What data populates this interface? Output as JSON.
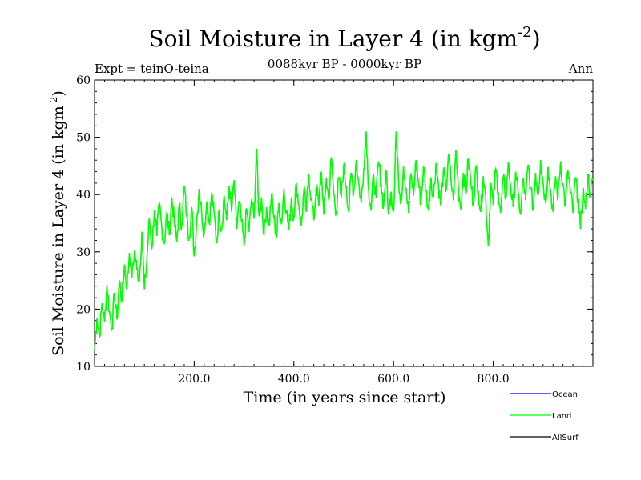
{
  "chart_data": {
    "type": "line",
    "title": "Soil Moisture in Layer 4 (in kgm",
    "title_sup": "-2",
    "title_close": ")",
    "subtitle": "0088kyr BP - 0000kyr BP",
    "expt_label": "Expt = teinO-teina",
    "season_label": "Ann",
    "xlabel": "Time (in years since start)",
    "ylabel": "Soil Moisture in Layer 4 (in kgm",
    "ylabel_sup": "-2",
    "ylabel_close": ")",
    "xlim": [
      0,
      1000
    ],
    "ylim": [
      10,
      60
    ],
    "x_ticks": [
      200,
      400,
      600,
      800
    ],
    "x_tick_labels": [
      "200.0",
      "400.0",
      "600.0",
      "800.0"
    ],
    "y_ticks": [
      10,
      20,
      30,
      40,
      50,
      60
    ],
    "y_tick_labels": [
      "10",
      "20",
      "30",
      "40",
      "50",
      "60"
    ],
    "legend": [
      {
        "name": "Ocean",
        "color": "#0000ff"
      },
      {
        "name": "Land",
        "color": "#00ff00"
      },
      {
        "name": "AllSurf",
        "color": "#000000"
      }
    ],
    "series": [
      {
        "name": "Land",
        "color": "#00ff00",
        "x": [
          0,
          5,
          10,
          15,
          20,
          25,
          30,
          35,
          40,
          45,
          50,
          55,
          60,
          65,
          70,
          75,
          80,
          85,
          90,
          95,
          100,
          105,
          110,
          115,
          120,
          125,
          130,
          135,
          140,
          145,
          150,
          155,
          160,
          165,
          170,
          175,
          180,
          185,
          190,
          195,
          200,
          205,
          210,
          215,
          220,
          225,
          230,
          235,
          240,
          245,
          250,
          255,
          260,
          265,
          270,
          275,
          280,
          285,
          290,
          295,
          300,
          305,
          310,
          315,
          320,
          325,
          330,
          335,
          340,
          345,
          350,
          355,
          360,
          365,
          370,
          375,
          380,
          385,
          390,
          395,
          400,
          405,
          410,
          415,
          420,
          425,
          430,
          435,
          440,
          445,
          450,
          455,
          460,
          465,
          470,
          475,
          480,
          485,
          490,
          495,
          500,
          505,
          510,
          515,
          520,
          525,
          530,
          535,
          540,
          545,
          550,
          555,
          560,
          565,
          570,
          575,
          580,
          585,
          590,
          595,
          600,
          605,
          610,
          615,
          620,
          625,
          630,
          635,
          640,
          645,
          650,
          655,
          660,
          665,
          670,
          675,
          680,
          685,
          690,
          695,
          700,
          705,
          710,
          715,
          720,
          725,
          730,
          735,
          740,
          745,
          750,
          755,
          760,
          765,
          770,
          775,
          780,
          785,
          790,
          795,
          800,
          805,
          810,
          815,
          820,
          825,
          830,
          835,
          840,
          845,
          850,
          855,
          860,
          865,
          870,
          875,
          880,
          885,
          890,
          895,
          900,
          905,
          910,
          915,
          920,
          925,
          930,
          935,
          940,
          945,
          950,
          955,
          960,
          965,
          970,
          975,
          980,
          985,
          990,
          995,
          1000
        ],
        "values": [
          12.8,
          18.5,
          15.2,
          21.0,
          17.8,
          24.2,
          19.5,
          16.5,
          22.8,
          18.2,
          25.0,
          21.5,
          27.8,
          23.8,
          29.8,
          25.5,
          30.2,
          27.0,
          25.2,
          33.5,
          23.5,
          28.5,
          35.8,
          30.5,
          37.2,
          32.8,
          38.5,
          34.2,
          31.5,
          36.8,
          33.0,
          39.5,
          35.2,
          31.8,
          38.2,
          34.5,
          41.5,
          36.2,
          32.5,
          37.8,
          29.2,
          35.5,
          41.0,
          36.8,
          33.2,
          38.8,
          35.0,
          40.2,
          36.5,
          31.5,
          37.2,
          33.8,
          39.8,
          35.5,
          41.5,
          37.0,
          42.5,
          34.0,
          38.8,
          35.2,
          31.0,
          37.5,
          33.5,
          39.2,
          35.8,
          48.0,
          36.2,
          39.5,
          33.0,
          37.8,
          34.5,
          40.0,
          36.0,
          32.5,
          38.5,
          34.8,
          41.0,
          37.2,
          33.8,
          39.5,
          36.0,
          42.0,
          38.2,
          34.5,
          40.8,
          37.0,
          43.5,
          39.2,
          35.5,
          41.8,
          38.0,
          44.0,
          36.5,
          42.8,
          39.0,
          46.5,
          40.2,
          36.8,
          43.0,
          39.5,
          45.2,
          41.5,
          37.0,
          43.8,
          40.2,
          46.0,
          42.0,
          38.5,
          44.5,
          51.0,
          40.8,
          37.2,
          43.5,
          39.5,
          45.8,
          41.8,
          38.0,
          44.2,
          36.5,
          40.5,
          37.0,
          51.0,
          42.5,
          38.8,
          45.0,
          41.2,
          36.8,
          43.5,
          39.8,
          46.0,
          42.2,
          38.5,
          44.8,
          40.8,
          37.2,
          43.0,
          39.5,
          45.5,
          41.8,
          38.0,
          44.2,
          40.5,
          46.8,
          42.8,
          39.0,
          47.8,
          41.2,
          37.5,
          43.8,
          40.0,
          46.2,
          42.2,
          38.5,
          44.8,
          40.8,
          37.0,
          43.2,
          39.5,
          31.0,
          42.0,
          38.2,
          44.5,
          40.5,
          36.8,
          43.0,
          39.2,
          45.5,
          41.5,
          37.8,
          44.0,
          40.2,
          36.5,
          42.8,
          39.0,
          45.2,
          41.2,
          37.5,
          43.8,
          40.0,
          46.0,
          42.2,
          38.5,
          44.8,
          40.8,
          37.0,
          43.2,
          39.5,
          45.8,
          41.8,
          38.0,
          44.2,
          40.5,
          36.8,
          43.0,
          39.2,
          34.0,
          41.0,
          37.5,
          43.5,
          39.8,
          42.5
        ]
      },
      {
        "name": "AllSurf",
        "color": "#000000",
        "x": [
          0,
          5,
          10,
          15,
          20,
          25,
          30,
          35,
          40,
          45,
          50,
          55,
          60,
          65,
          70,
          75,
          80,
          85,
          90,
          95,
          100,
          105,
          110,
          115,
          120,
          125,
          130,
          135,
          140,
          145,
          150,
          155,
          160,
          165,
          170,
          175,
          180,
          185,
          190,
          195,
          200,
          205,
          210,
          215,
          220,
          225,
          230,
          235,
          240,
          245,
          250,
          255,
          260,
          265,
          270,
          275,
          280,
          285,
          290,
          295,
          300,
          305,
          310,
          315,
          320,
          325,
          330,
          335,
          340,
          345,
          350,
          355,
          360,
          365,
          370,
          375,
          380,
          385,
          390,
          395,
          400,
          405,
          410,
          415,
          420,
          425,
          430,
          435,
          440,
          445,
          450,
          455,
          460,
          465,
          470,
          475,
          480,
          485,
          490,
          495,
          500,
          505,
          510,
          515,
          520,
          525,
          530,
          535,
          540,
          545,
          550,
          555,
          560,
          565,
          570,
          575,
          580,
          585,
          590,
          595,
          600,
          605,
          610,
          615,
          620,
          625,
          630,
          635,
          640,
          645,
          650,
          655,
          660,
          665,
          670,
          675,
          680,
          685,
          690,
          695,
          700,
          705,
          710,
          715,
          720,
          725,
          730,
          735,
          740,
          745,
          750,
          755,
          760,
          765,
          770,
          775,
          780,
          785,
          790,
          795,
          800,
          805,
          810,
          815,
          820,
          825,
          830,
          835,
          840,
          845,
          850,
          855,
          860,
          865,
          870,
          875,
          880,
          885,
          890,
          895,
          900,
          905,
          910,
          915,
          920,
          925,
          930,
          935,
          940,
          945,
          950,
          955,
          960,
          965,
          970,
          975,
          980,
          985,
          990,
          995,
          1000
        ],
        "values": [
          12.8,
          18.5,
          15.2,
          21.0,
          17.8,
          24.2,
          19.5,
          16.5,
          22.8,
          18.2,
          25.0,
          21.5,
          27.8,
          23.8,
          29.8,
          25.5,
          30.2,
          27.0,
          25.2,
          33.5,
          23.5,
          28.5,
          35.8,
          30.5,
          37.2,
          32.8,
          38.5,
          34.2,
          31.5,
          36.8,
          33.0,
          39.5,
          35.2,
          31.8,
          38.2,
          34.5,
          41.5,
          36.2,
          32.5,
          37.8,
          29.2,
          35.5,
          41.0,
          36.8,
          33.2,
          38.8,
          35.0,
          40.2,
          36.5,
          31.5,
          37.2,
          33.8,
          39.8,
          35.5,
          41.5,
          37.0,
          42.5,
          34.0,
          38.8,
          35.2,
          31.0,
          37.5,
          33.5,
          39.2,
          35.8,
          48.0,
          36.2,
          39.5,
          33.0,
          37.8,
          34.5,
          40.0,
          36.0,
          32.5,
          38.5,
          34.8,
          41.0,
          37.2,
          33.8,
          39.5,
          36.0,
          42.0,
          38.2,
          34.5,
          40.8,
          37.0,
          43.5,
          39.2,
          35.5,
          41.8,
          38.0,
          44.0,
          36.5,
          42.8,
          39.0,
          46.5,
          40.2,
          36.8,
          43.0,
          39.5,
          45.2,
          41.5,
          37.0,
          43.8,
          40.2,
          46.0,
          42.0,
          38.5,
          44.5,
          51.0,
          40.8,
          37.2,
          43.5,
          39.5,
          45.8,
          41.8,
          38.0,
          44.2,
          36.5,
          40.5,
          37.0,
          51.0,
          42.5,
          38.8,
          45.0,
          41.2,
          36.8,
          43.5,
          39.8,
          46.0,
          42.2,
          38.5,
          44.8,
          40.8,
          37.2,
          43.0,
          39.5,
          45.5,
          41.8,
          38.0,
          44.2,
          40.5,
          46.8,
          42.8,
          39.0,
          47.8,
          41.2,
          37.5,
          43.8,
          40.0,
          46.2,
          42.2,
          38.5,
          44.8,
          40.8,
          37.0,
          43.2,
          39.5,
          31.0,
          42.0,
          38.2,
          44.5,
          40.5,
          36.8,
          43.0,
          39.2,
          45.5,
          41.5,
          37.8,
          44.0,
          40.2,
          36.5,
          42.8,
          39.0,
          45.2,
          41.2,
          37.5,
          43.8,
          40.0,
          46.0,
          42.2,
          38.5,
          44.8,
          40.8,
          37.0,
          43.2,
          39.5,
          45.8,
          41.8,
          38.0,
          44.2,
          40.5,
          36.8,
          43.0,
          39.2,
          34.0,
          41.0,
          37.5,
          43.5,
          39.8,
          42.5
        ]
      }
    ]
  }
}
